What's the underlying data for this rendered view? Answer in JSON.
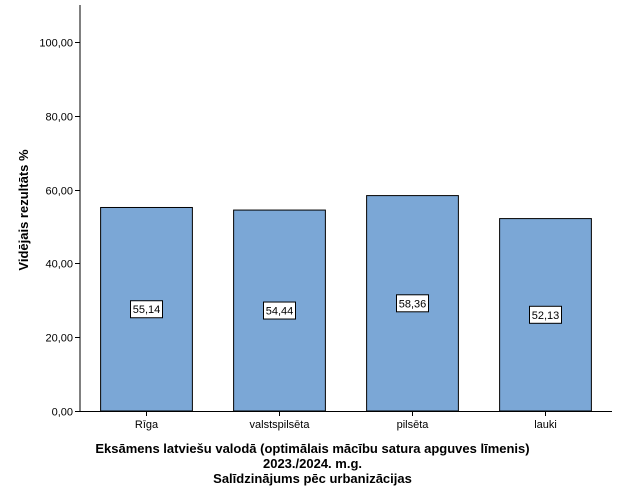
{
  "chart_data": {
    "type": "bar",
    "categories": [
      "Rīga",
      "valstspilsēta",
      "pilsēta",
      "lauki"
    ],
    "values": [
      55.14,
      54.44,
      58.36,
      52.13
    ],
    "value_labels": [
      "55,14",
      "54,44",
      "58,36",
      "52,13"
    ],
    "ylabel": "Vidējais rezultāts %",
    "xlabel_lines": [
      "Eksāmens latviešu valodā (optimālais mācību satura apguves līmenis)",
      "2023./2024. m.g.",
      "Salīdzinājums pēc urbanizācijas"
    ],
    "ylim": [
      0,
      110
    ],
    "yticks": [
      0,
      20,
      40,
      60,
      80,
      100
    ],
    "ytick_labels": [
      "0,00",
      "20,00",
      "40,00",
      "60,00",
      "80,00",
      "100,00"
    ],
    "grid": false,
    "colors": {
      "bar_fill": "#7ba7d6",
      "bar_stroke": "#000000",
      "background": "#ffffff"
    }
  }
}
